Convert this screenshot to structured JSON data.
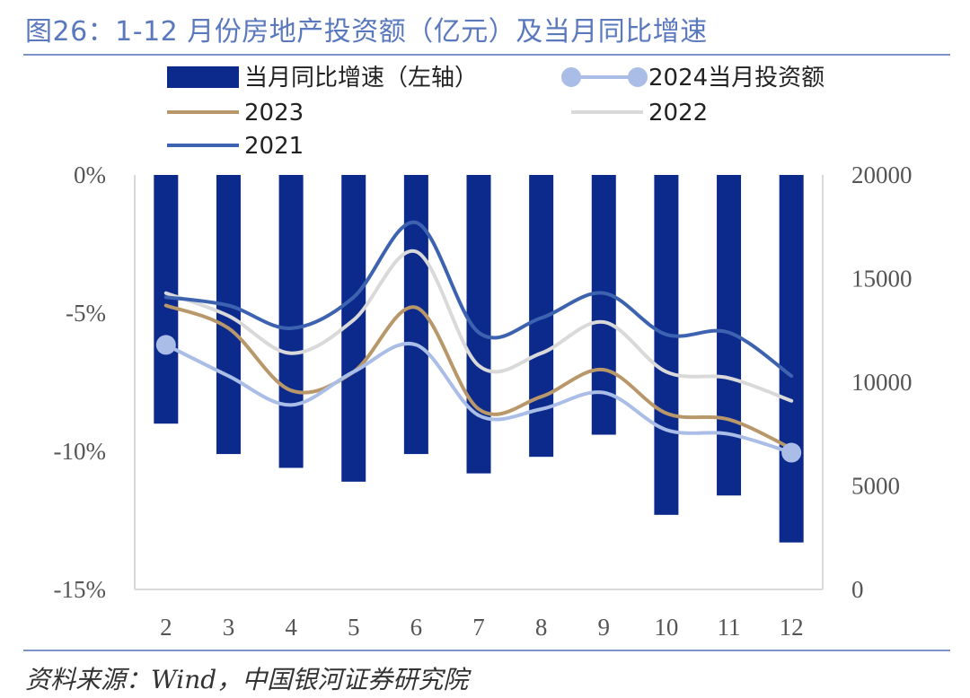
{
  "header": {
    "title": "图26：1-12 月份房地产投资额（亿元）及当月同比增速"
  },
  "footer": {
    "source": "资料来源：Wind，中国银河证券研究院"
  },
  "colors": {
    "bar": "#0b2a8c",
    "s2024": "#a9bde6",
    "s2023": "#b8976a",
    "s2022": "#d9d9d9",
    "s2021": "#3d63b0",
    "axis": "#d9d9d9",
    "title": "#5a78bd"
  },
  "chart_data": {
    "type": "bar+line",
    "categories": [
      "2",
      "3",
      "4",
      "5",
      "6",
      "7",
      "8",
      "9",
      "10",
      "11",
      "12"
    ],
    "left_axis": {
      "ylim": [
        -15,
        0
      ],
      "ticks": [
        "0%",
        "-5%",
        "-10%",
        "-15%"
      ],
      "tick_values": [
        0,
        -5,
        -10,
        -15
      ]
    },
    "right_axis": {
      "ylim": [
        0,
        20000
      ],
      "ticks": [
        "20000",
        "15000",
        "10000",
        "5000",
        "0"
      ],
      "tick_values": [
        20000,
        15000,
        10000,
        5000,
        0
      ]
    },
    "bars": {
      "name": "当月同比增速（左轴）",
      "axis": "left",
      "values": [
        -9.0,
        -10.1,
        -10.6,
        -11.1,
        -10.1,
        -10.8,
        -10.2,
        -9.4,
        -12.3,
        -11.6,
        -13.3
      ]
    },
    "series": [
      {
        "name": "2024当月投资额",
        "key": "s2024",
        "axis": "right",
        "markers": "ends",
        "values": [
          11800,
          10300,
          8900,
          10500,
          11800,
          8400,
          8700,
          9500,
          7700,
          7500,
          6600
        ]
      },
      {
        "name": "2023",
        "key": "s2023",
        "axis": "right",
        "values": [
          13700,
          12600,
          9600,
          10500,
          13600,
          8700,
          9300,
          10600,
          8500,
          8200,
          6800
        ]
      },
      {
        "name": "2022",
        "key": "s2022",
        "axis": "right",
        "values": [
          14300,
          13200,
          11400,
          13000,
          16300,
          10800,
          11400,
          12900,
          10500,
          10200,
          9100
        ]
      },
      {
        "name": "2021",
        "key": "s2021",
        "axis": "right",
        "values": [
          14100,
          13700,
          12600,
          14100,
          17700,
          12400,
          13100,
          14300,
          12300,
          12400,
          10300
        ]
      }
    ],
    "legend": [
      "当月同比增速（左轴）",
      "2024当月投资额",
      "2023",
      "2022",
      "2021"
    ],
    "legend_position": "top",
    "grid": false
  }
}
